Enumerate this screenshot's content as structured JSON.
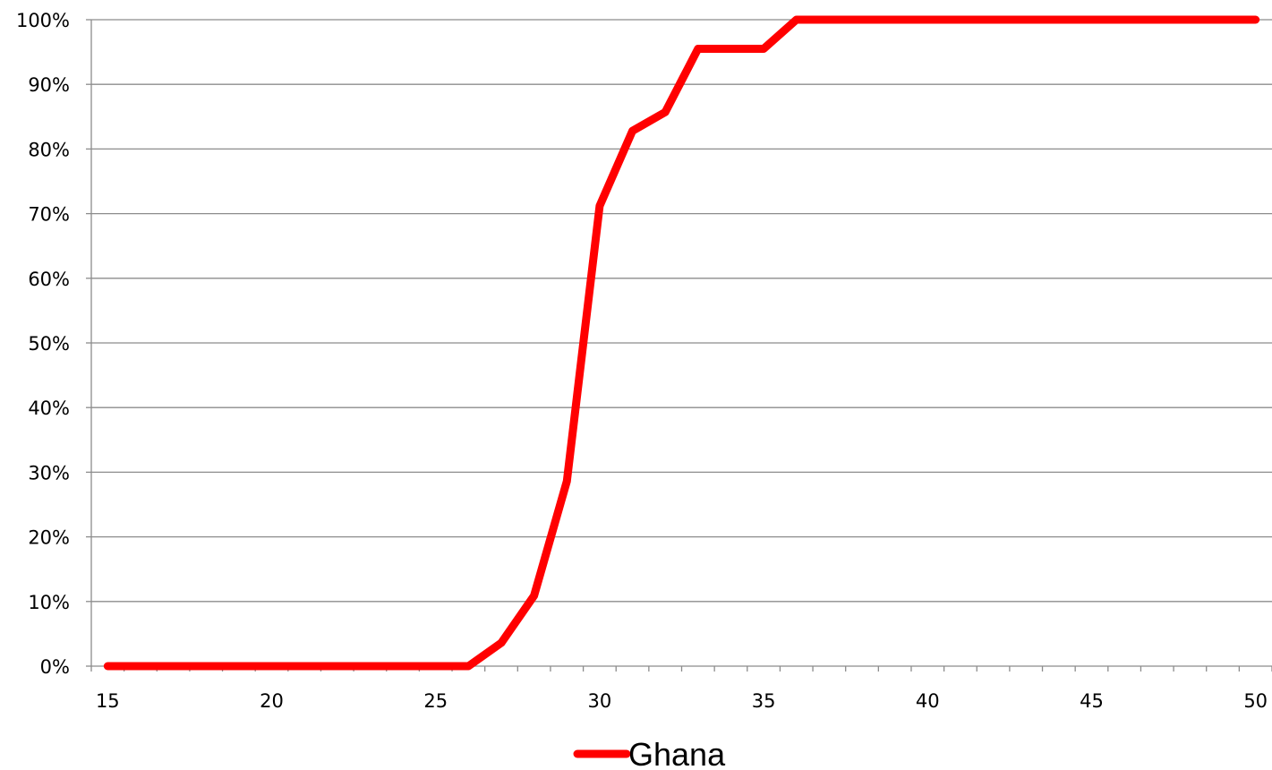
{
  "chart_data": {
    "type": "line",
    "title": "",
    "xlabel": "",
    "ylabel": "",
    "xlim": [
      15,
      50
    ],
    "ylim": [
      0,
      100
    ],
    "x_major_ticks": [
      15,
      20,
      25,
      30,
      35,
      40,
      45,
      50
    ],
    "x_major_tick_labels": [
      "15",
      "20",
      "25",
      "30",
      "35",
      "40",
      "45",
      "50"
    ],
    "y_ticks": [
      0,
      10,
      20,
      30,
      40,
      50,
      60,
      70,
      80,
      90,
      100
    ],
    "y_tick_labels": [
      "0%",
      "10%",
      "20%",
      "30%",
      "40%",
      "50%",
      "60%",
      "70%",
      "80%",
      "90%",
      "100%"
    ],
    "grid": "horizontal",
    "legend": {
      "position": "bottom-center"
    },
    "series": [
      {
        "name": "Ghana",
        "color": "#ff0000",
        "x": [
          15,
          16,
          17,
          18,
          19,
          20,
          21,
          22,
          23,
          24,
          25,
          26,
          27,
          28,
          29,
          30,
          31,
          32,
          33,
          34,
          35,
          36,
          37,
          38,
          39,
          40,
          41,
          42,
          43,
          44,
          45,
          46,
          47,
          48,
          49,
          50
        ],
        "y": [
          0,
          0,
          0,
          0,
          0,
          0,
          0,
          0,
          0,
          0,
          0,
          0,
          3.6,
          10.9,
          28.6,
          71.2,
          82.8,
          85.7,
          95.5,
          95.5,
          95.5,
          100,
          100,
          100,
          100,
          100,
          100,
          100,
          100,
          100,
          100,
          100,
          100,
          100,
          100,
          100
        ]
      }
    ]
  }
}
